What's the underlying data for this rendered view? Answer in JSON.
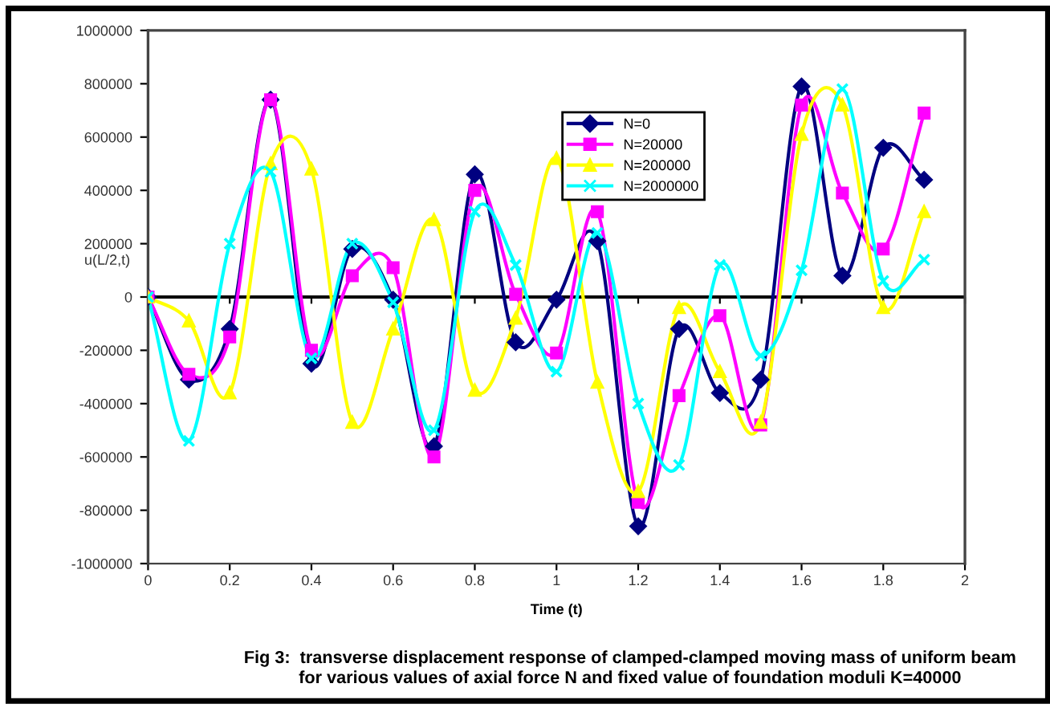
{
  "chart_data": {
    "type": "line",
    "xlabel": "Time (t)",
    "ylabel": "u(L/2,t)",
    "x": [
      0,
      0.1,
      0.2,
      0.3,
      0.4,
      0.5,
      0.6,
      0.7,
      0.8,
      0.9,
      1.0,
      1.1,
      1.2,
      1.3,
      1.4,
      1.5,
      1.6,
      1.7,
      1.8,
      1.9
    ],
    "series": [
      {
        "name": "N=0",
        "color": "#000080",
        "marker": "diamond",
        "values": [
          0,
          -310000,
          -120000,
          740000,
          -250000,
          180000,
          -10000,
          -560000,
          460000,
          -170000,
          -10000,
          210000,
          -860000,
          -120000,
          -360000,
          -310000,
          790000,
          80000,
          560000,
          440000
        ]
      },
      {
        "name": "N=20000",
        "color": "#ff00ff",
        "marker": "square",
        "values": [
          0,
          -290000,
          -150000,
          740000,
          -200000,
          80000,
          110000,
          -600000,
          400000,
          10000,
          -210000,
          320000,
          -770000,
          -370000,
          -70000,
          -480000,
          720000,
          390000,
          180000,
          690000
        ]
      },
      {
        "name": "N=200000",
        "color": "#ffff00",
        "marker": "triangle",
        "values": [
          0,
          -90000,
          -360000,
          500000,
          480000,
          -470000,
          -120000,
          290000,
          -350000,
          -80000,
          520000,
          -320000,
          -730000,
          -40000,
          -280000,
          -470000,
          610000,
          720000,
          -40000,
          320000
        ]
      },
      {
        "name": "N=2000000",
        "color": "#00ffff",
        "marker": "cross",
        "values": [
          0,
          -540000,
          200000,
          470000,
          -230000,
          200000,
          -20000,
          -500000,
          320000,
          120000,
          -280000,
          240000,
          -400000,
          -630000,
          120000,
          -220000,
          100000,
          780000,
          60000,
          140000
        ]
      }
    ],
    "xlim": [
      0,
      2
    ],
    "xticks": [
      0,
      0.2,
      0.4,
      0.6,
      0.8,
      1,
      1.2,
      1.4,
      1.6,
      1.8,
      2
    ],
    "ylim": [
      -1000000,
      1000000
    ],
    "yticks": [
      -1000000,
      -800000,
      -600000,
      -400000,
      -200000,
      0,
      200000,
      400000,
      600000,
      800000,
      1000000
    ],
    "ref_lines": [
      {
        "axis": "y",
        "value": 0,
        "color": "#000000"
      }
    ],
    "legend": "top right",
    "annotations": [
      "Fig 3:  transverse displacement response of clamped-clamped moving mass of uniform beam\nfor various values of axial force N and fixed value of foundation moduli K=40000"
    ]
  }
}
